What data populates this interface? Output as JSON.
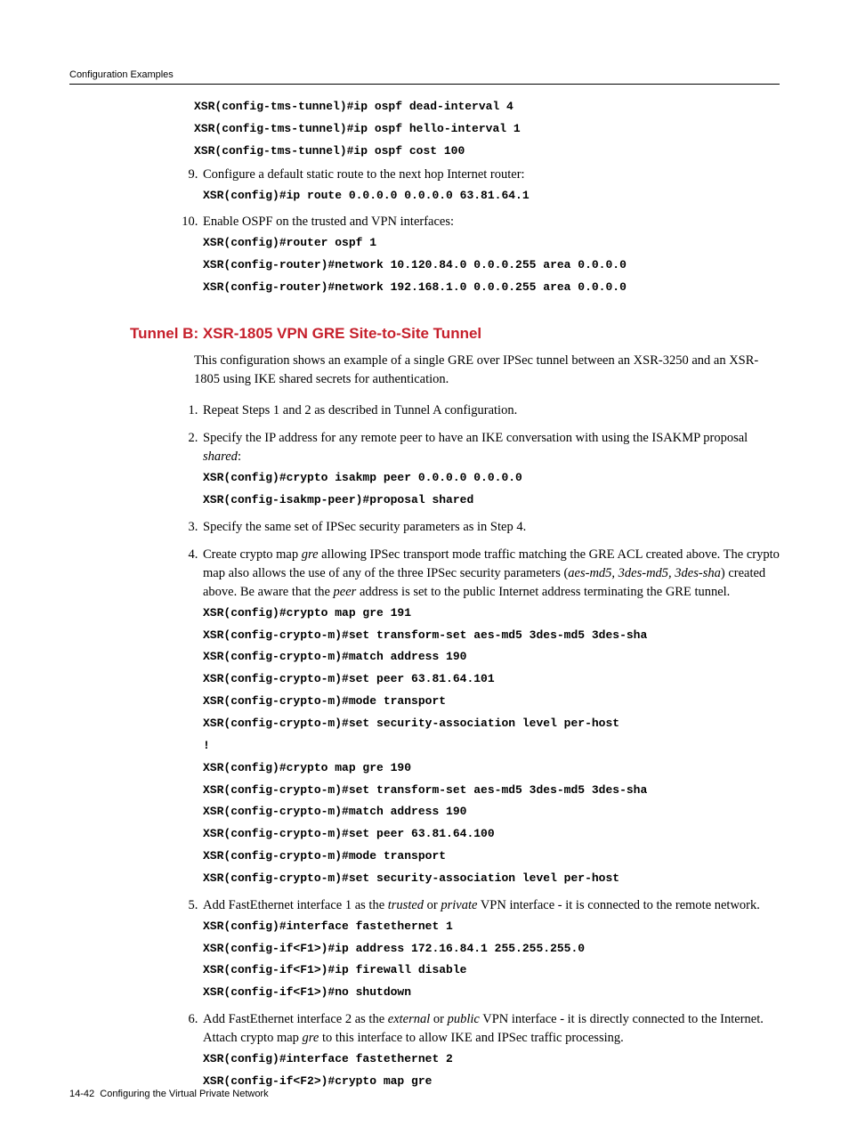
{
  "header": {
    "running_title": "Configuration Examples"
  },
  "code_top": {
    "l1": "XSR(config-tms-tunnel)#ip ospf dead-interval 4",
    "l2": "XSR(config-tms-tunnel)#ip ospf hello-interval 1",
    "l3": "XSR(config-tms-tunnel)#ip ospf cost 100"
  },
  "steps_a": {
    "s9": {
      "text": "Configure a default static route to the next hop Internet router:",
      "c1": "XSR(config)#ip route 0.0.0.0 0.0.0.0 63.81.64.1"
    },
    "s10": {
      "text": "Enable OSPF on the trusted and VPN interfaces:",
      "c1": "XSR(config)#router ospf 1",
      "c2": "XSR(config-router)#network 10.120.84.0 0.0.0.255 area 0.0.0.0",
      "c3": "XSR(config-router)#network 192.168.1.0 0.0.0.255 area 0.0.0.0"
    }
  },
  "section": {
    "heading": "Tunnel B: XSR-1805 VPN GRE Site-to-Site Tunnel",
    "intro": "This configuration shows an example of a single GRE over IPSec tunnel between an XSR-3250 and an XSR-1805 using IKE shared secrets for authentication."
  },
  "steps_b": {
    "s1": {
      "text": "Repeat Steps 1 and 2 as described in Tunnel A configuration."
    },
    "s2": {
      "text_pre": "Specify the IP address for any remote peer to have an IKE conversation with using the ISAKMP proposal ",
      "text_it": "shared",
      "text_post": ":",
      "c1": "XSR(config)#crypto isakmp peer 0.0.0.0 0.0.0.0",
      "c2": "XSR(config-isakmp-peer)#proposal shared"
    },
    "s3": {
      "text": "Specify the same set of IPSec security parameters as in Step 4."
    },
    "s4": {
      "text_a": "Create crypto map ",
      "text_it1": "gre",
      "text_b": " allowing IPSec transport mode traffic matching the GRE ACL created above. The crypto map also allows the use of any of the three IPSec security parameters (",
      "text_it2": "aes-md5, 3des-md5, 3des-sha",
      "text_c": ") created above. Be aware that the ",
      "text_it3": "peer",
      "text_d": " address is set to the public Internet address terminating the GRE tunnel.",
      "c1": "XSR(config)#crypto map gre 191",
      "c2": "XSR(config-crypto-m)#set transform-set aes-md5 3des-md5 3des-sha",
      "c3": "XSR(config-crypto-m)#match address 190",
      "c4": "XSR(config-crypto-m)#set peer 63.81.64.101",
      "c5": "XSR(config-crypto-m)#mode transport",
      "c6": "XSR(config-crypto-m)#set security-association level per-host",
      "c7": "!",
      "c8": "XSR(config)#crypto map gre 190",
      "c9": "XSR(config-crypto-m)#set transform-set aes-md5 3des-md5 3des-sha",
      "c10": "XSR(config-crypto-m)#match address 190",
      "c11": "XSR(config-crypto-m)#set peer 63.81.64.100",
      "c12": "XSR(config-crypto-m)#mode transport",
      "c13": "XSR(config-crypto-m)#set security-association level per-host"
    },
    "s5": {
      "text_a": "Add FastEthernet interface 1 as the ",
      "text_it1": "trusted",
      "text_b": " or ",
      "text_it2": "private",
      "text_c": " VPN interface - it is connected to the remote network.",
      "c1": "XSR(config)#interface fastethernet 1",
      "c2": "XSR(config-if<F1>)#ip address 172.16.84.1 255.255.255.0",
      "c3": "XSR(config-if<F1>)#ip firewall disable",
      "c4": "XSR(config-if<F1>)#no shutdown"
    },
    "s6": {
      "text_a": "Add FastEthernet interface 2 as the ",
      "text_it1": "external",
      "text_b": " or ",
      "text_it2": "public",
      "text_c": " VPN interface - it is directly connected to the Internet. Attach crypto map ",
      "text_it3": "gre",
      "text_d": " to this interface to allow IKE and IPSec traffic processing.",
      "c1": "XSR(config)#interface fastethernet 2",
      "c2": "XSR(config-if<F2>)#crypto map gre"
    }
  },
  "footer": {
    "page_num": "14-42",
    "chapter": "Configuring the Virtual Private Network"
  },
  "colors": {
    "heading": "#c6202c",
    "rule": "#000000",
    "text": "#000000",
    "background": "#ffffff"
  },
  "fonts": {
    "body": "Book Antiqua / Palatino, serif",
    "code": "Courier New, monospace, bold",
    "heading": "Arial, sans-serif, bold",
    "header_footer": "Arial, sans-serif"
  }
}
